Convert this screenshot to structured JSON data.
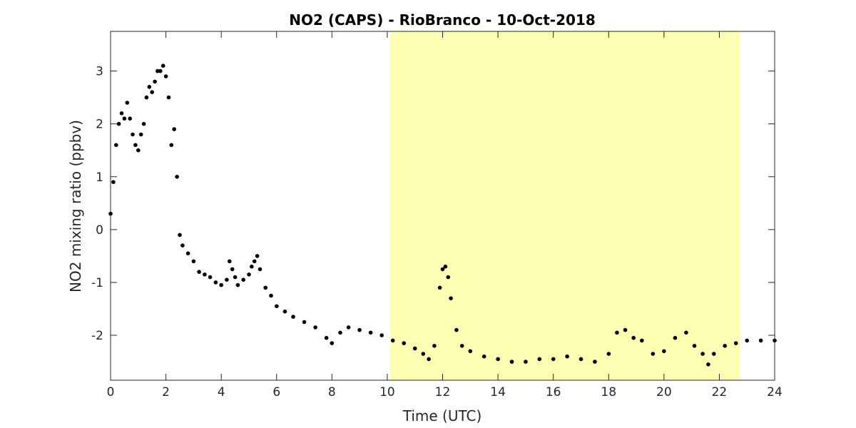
{
  "chart_data": {
    "type": "scatter",
    "title": "NO2 (CAPS) - RioBranco - 10-Oct-2018",
    "xlabel": "Time (UTC)",
    "ylabel": "NO2 mixing ratio (ppbv)",
    "xlim": [
      0,
      24
    ],
    "ylim": [
      -2.85,
      3.75
    ],
    "xticks": [
      0,
      2,
      4,
      6,
      8,
      10,
      12,
      14,
      16,
      18,
      20,
      22,
      24
    ],
    "yticks": [
      -2,
      -1,
      0,
      1,
      2,
      3
    ],
    "grid": false,
    "marker_color": "#000000",
    "highlight": {
      "x_start": 10.1,
      "x_end": 22.75,
      "color": "#ffffb3"
    },
    "series": [
      {
        "x": [
          0.0,
          0.1,
          0.2,
          0.3,
          0.4,
          0.5,
          0.6,
          0.7,
          0.8,
          0.9,
          1.0,
          1.1,
          1.2,
          1.3,
          1.4,
          1.5,
          1.6,
          1.7,
          1.8,
          1.9,
          2.0,
          2.1,
          2.2,
          2.3,
          2.4,
          2.5,
          2.6,
          2.8,
          3.0,
          3.2,
          3.4,
          3.6,
          3.8,
          4.0,
          4.2,
          4.3,
          4.4,
          4.5,
          4.6,
          4.8,
          5.0,
          5.1,
          5.2,
          5.3,
          5.4,
          5.6,
          5.8,
          6.0,
          6.3,
          6.6,
          7.0,
          7.4,
          7.8,
          8.0,
          8.3,
          8.6,
          9.0,
          9.4,
          9.8,
          10.2,
          10.6,
          11.0,
          11.3,
          11.5,
          11.7,
          11.9,
          12.0,
          12.1,
          12.2,
          12.3,
          12.5,
          12.7,
          13.0,
          13.5,
          14.0,
          14.5,
          15.0,
          15.5,
          16.0,
          16.5,
          17.0,
          17.5,
          18.0,
          18.3,
          18.6,
          18.9,
          19.2,
          19.6,
          20.0,
          20.4,
          20.8,
          21.1,
          21.4,
          21.6,
          21.8,
          22.2,
          22.6,
          23.0,
          23.5,
          24.0
        ],
        "y": [
          0.3,
          0.9,
          1.6,
          2.0,
          2.2,
          2.1,
          2.4,
          2.1,
          1.8,
          1.6,
          1.5,
          1.8,
          2.0,
          2.5,
          2.7,
          2.6,
          2.8,
          3.0,
          3.0,
          3.1,
          2.9,
          2.5,
          1.6,
          1.9,
          1.0,
          -0.1,
          -0.3,
          -0.45,
          -0.6,
          -0.8,
          -0.85,
          -0.9,
          -1.0,
          -1.05,
          -0.95,
          -0.6,
          -0.75,
          -0.9,
          -1.05,
          -0.95,
          -0.85,
          -0.7,
          -0.6,
          -0.5,
          -0.75,
          -1.1,
          -1.25,
          -1.45,
          -1.55,
          -1.65,
          -1.75,
          -1.85,
          -2.05,
          -2.15,
          -1.95,
          -1.85,
          -1.9,
          -1.95,
          -2.0,
          -2.1,
          -2.15,
          -2.25,
          -2.35,
          -2.45,
          -2.2,
          -1.1,
          -0.75,
          -0.7,
          -0.9,
          -1.3,
          -1.9,
          -2.2,
          -2.3,
          -2.4,
          -2.45,
          -2.5,
          -2.5,
          -2.45,
          -2.45,
          -2.4,
          -2.45,
          -2.5,
          -2.35,
          -1.95,
          -1.9,
          -2.05,
          -2.1,
          -2.35,
          -2.3,
          -2.05,
          -1.95,
          -2.2,
          -2.35,
          -2.55,
          -2.35,
          -2.2,
          -2.15,
          -2.1,
          -2.1,
          -2.1
        ]
      }
    ]
  }
}
